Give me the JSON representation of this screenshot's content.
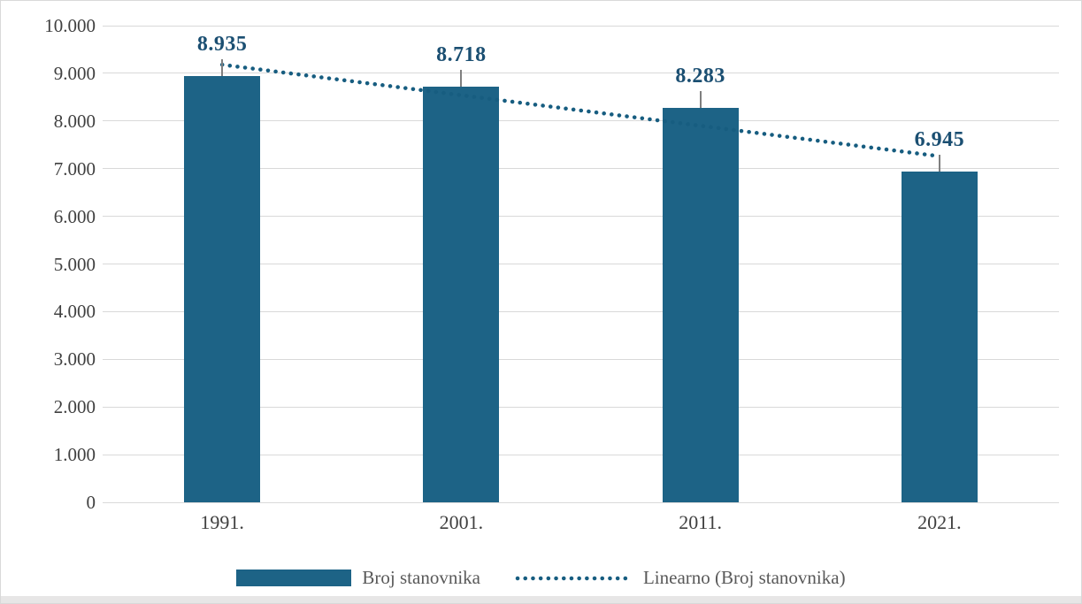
{
  "chart_data": {
    "type": "bar",
    "title": "",
    "categories": [
      "1991.",
      "2001.",
      "2011.",
      "2021."
    ],
    "series": [
      {
        "name": "Broj stanovnika",
        "values": [
          8935,
          8718,
          8283,
          6945
        ]
      }
    ],
    "data_labels": [
      "8.935",
      "8.718",
      "8.283",
      "6.945"
    ],
    "trendline": {
      "name": "Linearno (Broj stanovnika)",
      "type": "linear",
      "start_value": 9181,
      "end_value": 7260
    },
    "y_axis": {
      "min": 0,
      "max": 10000,
      "step": 1000,
      "tick_labels": [
        "0",
        "1.000",
        "2.000",
        "3.000",
        "4.000",
        "5.000",
        "6.000",
        "7.000",
        "8.000",
        "9.000",
        "10.000"
      ]
    },
    "x_axis_label": "",
    "y_axis_label": "",
    "grid": true,
    "legend_position": "bottom"
  },
  "legend": {
    "bar_label": "Broj stanovnika",
    "trend_label": "Linearno (Broj stanovnika)"
  },
  "colors": {
    "bar": "#1d6386",
    "trend": "#175d80",
    "value_label": "#1b4f72",
    "grid": "#d9d9d9",
    "axis_text": "#404040",
    "legend_text": "#595959",
    "leader": "#7f7f7f"
  }
}
